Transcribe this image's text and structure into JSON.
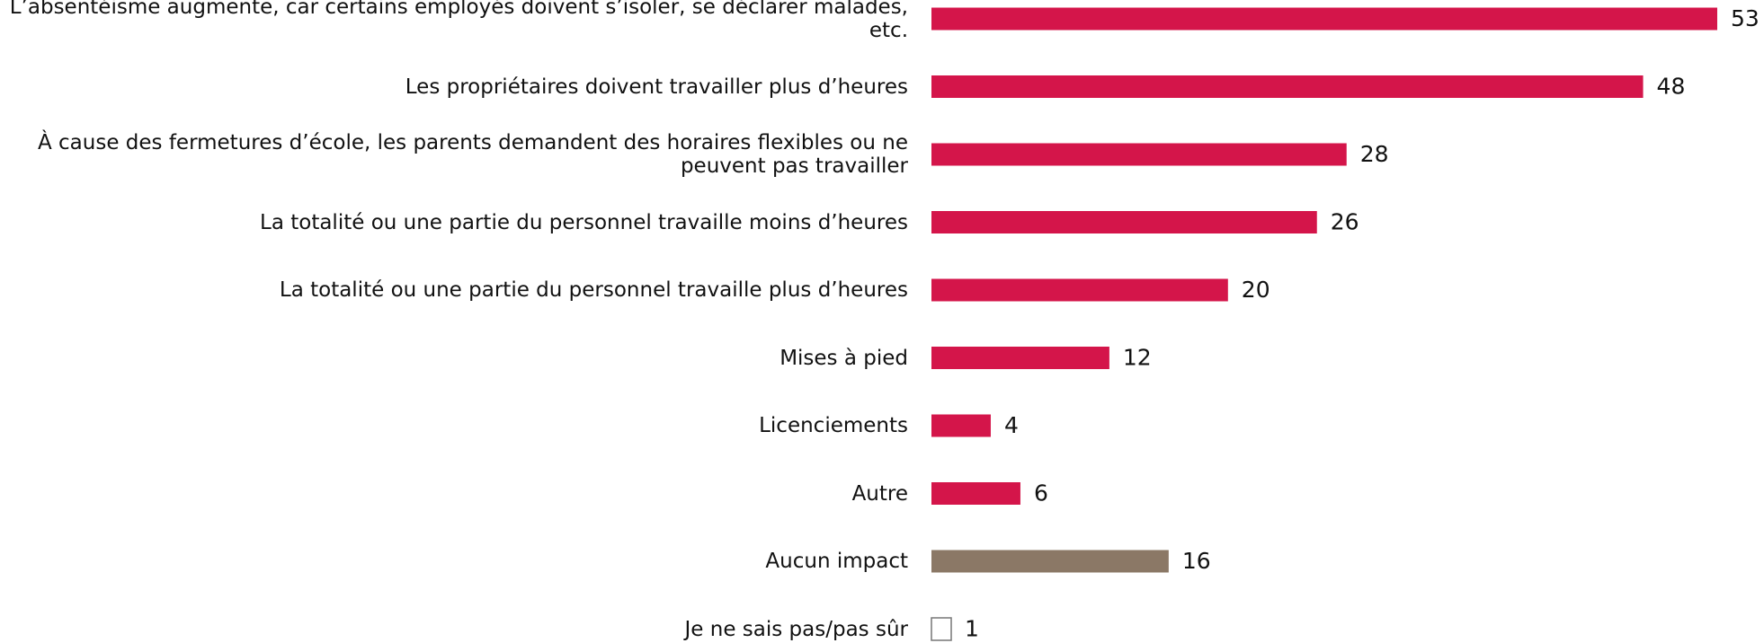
{
  "chart_data": {
    "type": "bar",
    "orientation": "horizontal",
    "categories": [
      "L’absentéisme augmente, car certains employés doivent s’isoler, se déclarer malades, etc.",
      "Les propriétaires doivent travailler plus d’heures",
      "À cause des fermetures d’école, les parents demandent des horaires flexibles ou ne peuvent pas travailler",
      "La totalité ou une partie du personnel travaille moins d’heures",
      "La totalité ou une partie du personnel travaille plus d’heures",
      "Mises à pied",
      "Licenciements",
      "Autre",
      "Aucun impact",
      "Je ne sais pas/pas sûr"
    ],
    "values": [
      53,
      48,
      28,
      26,
      20,
      12,
      4,
      6,
      16,
      1
    ],
    "colors": [
      "#d4154a",
      "#d4154a",
      "#d4154a",
      "#d4154a",
      "#d4154a",
      "#d4154a",
      "#d4154a",
      "#d4154a",
      "#8b7866",
      "#ffffff"
    ]
  }
}
